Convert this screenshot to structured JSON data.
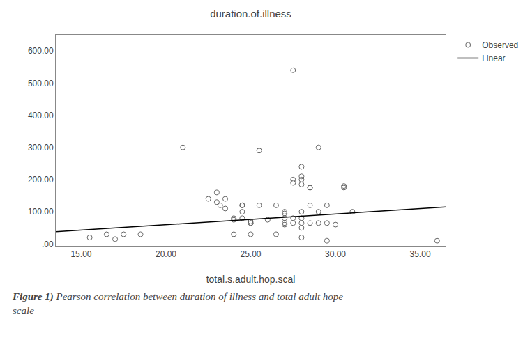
{
  "chart_data": {
    "type": "scatter",
    "title": "duration.of.illness",
    "x_label": "total.s.adult.hop.scal",
    "annotations": [
      "Figure 1)",
      "Pearson correlation between duration of illness and total adult hope",
      "scale"
    ],
    "series": [
      {
        "name": "Observed",
        "type": "scatter",
        "marker": "circle-open",
        "color": "#666666",
        "x": [
          15.5,
          16.5,
          17.0,
          17.5,
          18.5,
          21.0,
          22.5,
          23.0,
          23.0,
          23.2,
          23.5,
          23.5,
          24.0,
          24.0,
          24.0,
          24.5,
          24.5,
          24.5,
          24.5,
          25.0,
          25.0,
          25.0,
          25.0,
          25.5,
          25.5,
          26.0,
          26.5,
          26.5,
          27.0,
          27.0,
          27.0,
          27.0,
          27.0,
          27.5,
          27.5,
          27.5,
          27.5,
          27.5,
          28.0,
          28.0,
          28.0,
          28.0,
          28.0,
          28.0,
          28.0,
          28.0,
          28.0,
          28.5,
          28.5,
          28.5,
          28.5,
          29.0,
          29.0,
          29.0,
          29.5,
          29.5,
          29.5,
          30.0,
          30.5,
          30.5,
          31.0,
          36.0
        ],
        "values": [
          20,
          30,
          15,
          30,
          30,
          300,
          140,
          130,
          160,
          120,
          140,
          110,
          75,
          80,
          30,
          120,
          120,
          100,
          80,
          70,
          65,
          65,
          30,
          290,
          120,
          75,
          30,
          120,
          100,
          95,
          80,
          65,
          60,
          540,
          200,
          190,
          80,
          65,
          240,
          210,
          200,
          185,
          100,
          80,
          65,
          50,
          20,
          175,
          175,
          120,
          65,
          300,
          100,
          65,
          120,
          65,
          10,
          60,
          180,
          175,
          100,
          10
        ]
      },
      {
        "name": "Linear",
        "type": "line",
        "color": "black",
        "x": [
          13.5,
          36.5
        ],
        "values": [
          38,
          115
        ]
      }
    ],
    "xlim": [
      13.5,
      36.5
    ],
    "ylim": [
      -8,
      650
    ],
    "xticks": [
      {
        "value": 15,
        "label": "15.00"
      },
      {
        "value": 20,
        "label": "20.00"
      },
      {
        "value": 25,
        "label": "25.00"
      },
      {
        "value": 30,
        "label": "30.00"
      },
      {
        "value": 35,
        "label": "35.00"
      }
    ],
    "yticks": [
      {
        "value": 0,
        "label": ".00"
      },
      {
        "value": 100,
        "label": "100.00"
      },
      {
        "value": 200,
        "label": "200.00"
      },
      {
        "value": 300,
        "label": "300.00"
      },
      {
        "value": 400,
        "label": "400.00"
      },
      {
        "value": 500,
        "label": "500.00"
      },
      {
        "value": 600,
        "label": "600.00"
      }
    ],
    "grid": false,
    "legend": "upper right"
  }
}
